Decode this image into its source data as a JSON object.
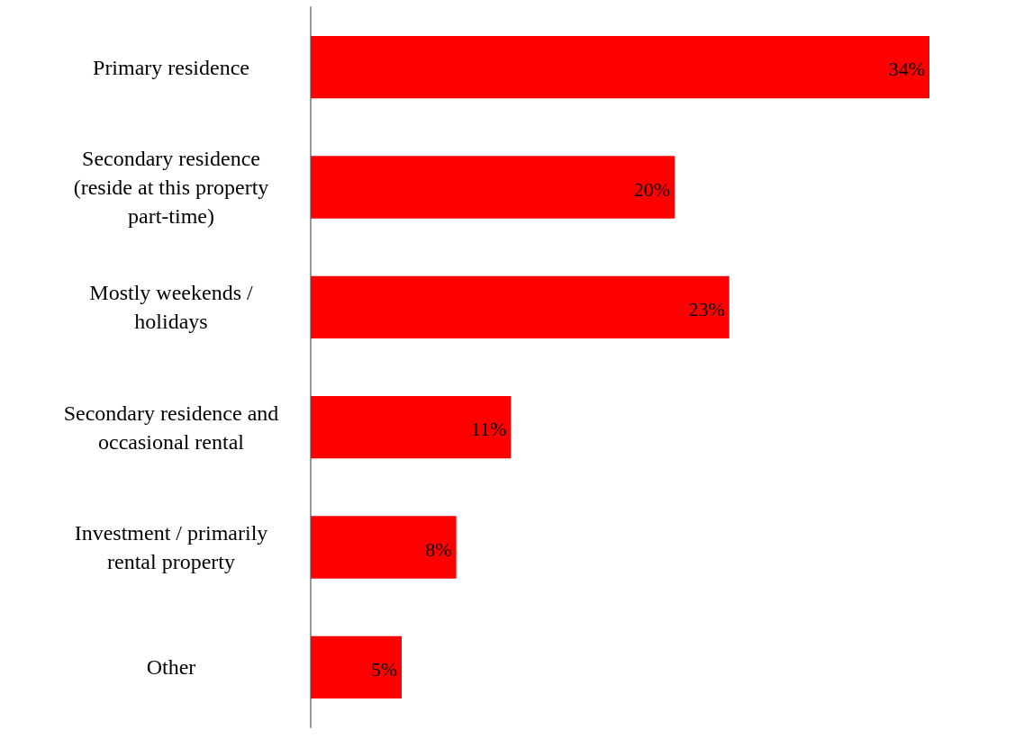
{
  "chart_data": {
    "type": "bar",
    "orientation": "horizontal",
    "categories": [
      "Primary residence",
      "Secondary residence\n(reside at this property\npart-time)",
      "Mostly weekends /\nholidays",
      "Secondary residence and\noccasional rental",
      "Investment / primarily\nrental property",
      "Other"
    ],
    "values": [
      34,
      20,
      23,
      11,
      8,
      5
    ],
    "value_labels": [
      "34%",
      "20%",
      "23%",
      "11%",
      "8%",
      "5%"
    ],
    "color": "#ff0000"
  }
}
